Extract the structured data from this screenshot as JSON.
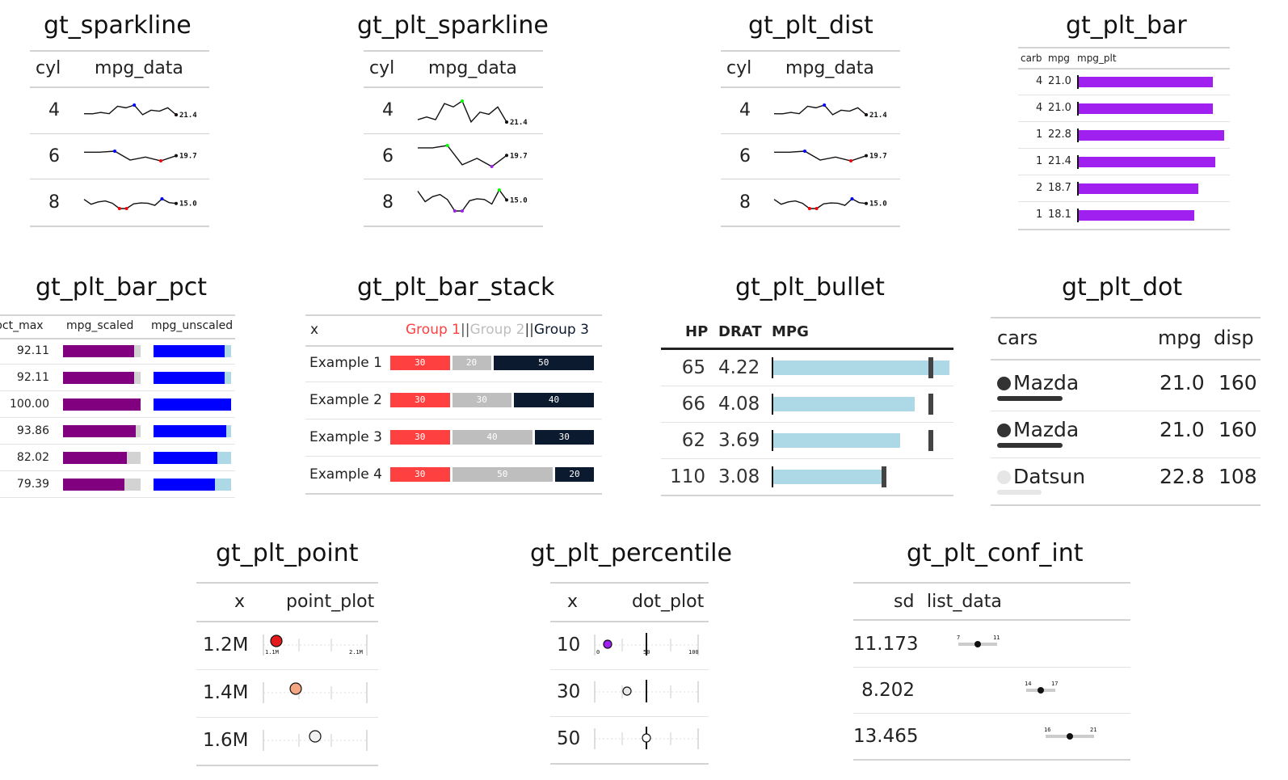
{
  "titles": {
    "sparkline": "gt_sparkline",
    "plt_sparkline": "gt_plt_sparkline",
    "plt_dist": "gt_plt_dist",
    "plt_bar": "gt_plt_bar",
    "bar_pct": "gt_plt_bar_pct",
    "bar_stack": "gt_plt_bar_stack",
    "bullet": "gt_plt_bullet",
    "dot": "gt_plt_dot",
    "point": "gt_plt_point",
    "percentile": "gt_plt_percentile",
    "conf_int": "gt_plt_conf_int"
  },
  "colors": {
    "purple": "#a020f0",
    "dark_purple": "#800080",
    "blue": "#0000ff",
    "light_blue": "#add8e6",
    "red": "#ff4040",
    "gray": "#bebebe",
    "navy": "#0b1a2e",
    "green": "#00ff00"
  },
  "chart_data": [
    {
      "type": "table",
      "id": "sparkline",
      "title": "gt_sparkline",
      "columns": [
        "cyl",
        "mpg_data"
      ],
      "rows": [
        {
          "cyl": "4",
          "label": "21.4",
          "values": [
            22.8,
            22.6,
            24.4,
            22.8,
            32.4,
            30.4,
            33.9,
            21.5,
            27.3,
            26.0,
            30.4,
            21.4
          ]
        },
        {
          "cyl": "6",
          "label": "19.7",
          "values": [
            21.0,
            21.0,
            21.4,
            18.1,
            19.2,
            17.8,
            19.7
          ]
        },
        {
          "cyl": "8",
          "label": "15.0",
          "values": [
            18.7,
            14.3,
            16.4,
            17.3,
            15.2,
            10.4,
            10.4,
            14.7,
            15.5,
            15.2,
            13.3,
            19.2,
            15.8,
            15.0
          ]
        }
      ]
    },
    {
      "type": "table",
      "id": "plt_sparkline",
      "title": "gt_plt_sparkline",
      "columns": [
        "cyl",
        "mpg_data"
      ],
      "rows": [
        {
          "cyl": "4",
          "label": "21.4",
          "values": [
            22.8,
            24.4,
            22.8,
            32.4,
            30.4,
            33.9,
            21.5,
            27.3,
            26.0,
            30.4,
            21.4
          ]
        },
        {
          "cyl": "6",
          "label": "19.7",
          "values": [
            21.0,
            21.0,
            21.4,
            18.1,
            19.2,
            17.8,
            19.7
          ]
        },
        {
          "cyl": "8",
          "label": "15.0",
          "values": [
            18.7,
            14.3,
            16.4,
            17.3,
            15.2,
            10.4,
            10.4,
            14.7,
            15.5,
            15.2,
            13.3,
            19.2,
            15.0
          ]
        }
      ]
    },
    {
      "type": "table",
      "id": "plt_dist",
      "title": "gt_plt_dist",
      "columns": [
        "cyl",
        "mpg_data"
      ],
      "rows": [
        {
          "cyl": "4",
          "label": "21.4",
          "values": [
            22.8,
            22.6,
            24.4,
            22.8,
            32.4,
            30.4,
            33.9,
            21.5,
            27.3,
            26.0,
            30.4,
            21.4
          ]
        },
        {
          "cyl": "6",
          "label": "19.7",
          "values": [
            21.0,
            21.0,
            21.4,
            18.1,
            19.2,
            17.8,
            19.7
          ]
        },
        {
          "cyl": "8",
          "label": "15.0",
          "values": [
            18.7,
            14.3,
            16.4,
            17.3,
            15.2,
            10.4,
            10.4,
            14.7,
            15.5,
            15.2,
            13.3,
            19.2,
            15.8,
            15.0
          ]
        }
      ]
    },
    {
      "type": "bar",
      "id": "plt_bar",
      "title": "gt_plt_bar",
      "columns": [
        "carb",
        "mpg",
        "mpg_plt"
      ],
      "rows": [
        {
          "carb": "4",
          "mpg": "21.0",
          "value": 21.0
        },
        {
          "carb": "4",
          "mpg": "21.0",
          "value": 21.0
        },
        {
          "carb": "1",
          "mpg": "22.8",
          "value": 22.8
        },
        {
          "carb": "1",
          "mpg": "21.4",
          "value": 21.4
        },
        {
          "carb": "2",
          "mpg": "18.7",
          "value": 18.7
        },
        {
          "carb": "1",
          "mpg": "18.1",
          "value": 18.1
        }
      ],
      "xlim": [
        0,
        22.8
      ]
    },
    {
      "type": "bar",
      "id": "bar_pct",
      "title": "gt_plt_bar_pct",
      "columns": [
        "pct_max",
        "mpg_scaled",
        "mpg_unscaled"
      ],
      "rows": [
        {
          "pct_max": "92.11",
          "scaled": 92.11,
          "unscaled": 92.11
        },
        {
          "pct_max": "92.11",
          "scaled": 92.11,
          "unscaled": 92.11
        },
        {
          "pct_max": "100.00",
          "scaled": 100.0,
          "unscaled": 100.0
        },
        {
          "pct_max": "93.86",
          "scaled": 93.86,
          "unscaled": 93.86
        },
        {
          "pct_max": "82.02",
          "scaled": 82.02,
          "unscaled": 82.02
        },
        {
          "pct_max": "79.39",
          "scaled": 79.39,
          "unscaled": 79.39
        }
      ]
    },
    {
      "type": "bar",
      "id": "bar_stack",
      "title": "gt_plt_bar_stack",
      "columns": [
        "x"
      ],
      "legend": [
        "Group 1",
        "||",
        "Group 2",
        "||",
        "Group 3"
      ],
      "rows": [
        {
          "x": "Example 1",
          "values": [
            30,
            20,
            50
          ]
        },
        {
          "x": "Example 2",
          "values": [
            30,
            30,
            40
          ]
        },
        {
          "x": "Example 3",
          "values": [
            30,
            40,
            30
          ]
        },
        {
          "x": "Example 4",
          "values": [
            30,
            50,
            20
          ]
        }
      ]
    },
    {
      "type": "bar",
      "id": "bullet",
      "title": "gt_plt_bullet",
      "columns": [
        "HP",
        "DRAT",
        "MPG"
      ],
      "rows": [
        {
          "hp": "65",
          "drat": "4.22",
          "value": 33.9,
          "target": 30.4
        },
        {
          "hp": "66",
          "drat": "4.08",
          "value": 27.3,
          "target": 30.4
        },
        {
          "hp": "62",
          "drat": "3.69",
          "value": 24.4,
          "target": 30.4
        },
        {
          "hp": "110",
          "drat": "3.08",
          "value": 21.4,
          "target": 21.4
        }
      ],
      "xlim": [
        0,
        35
      ]
    },
    {
      "type": "table",
      "id": "dot",
      "title": "gt_plt_dot",
      "columns": [
        "cars",
        "mpg",
        "disp"
      ],
      "rows": [
        {
          "car": "Mazda",
          "mpg": "21.0",
          "disp": "160",
          "bar": 0.92,
          "color": "#333333"
        },
        {
          "car": "Mazda",
          "mpg": "21.0",
          "disp": "160",
          "bar": 0.92,
          "color": "#333333"
        },
        {
          "car": "Datsun",
          "mpg": "22.8",
          "disp": "108",
          "bar": 0.63,
          "color": "#e6e6e6"
        }
      ]
    },
    {
      "type": "scatter",
      "id": "point",
      "title": "gt_plt_point",
      "columns": [
        "x",
        "point_plot"
      ],
      "axis_labels": [
        "1.1M",
        "2.1M"
      ],
      "xlim": [
        1100000,
        2100000
      ],
      "rows": [
        {
          "x": "1.2M",
          "value": 1200000,
          "color": "#e41a1c"
        },
        {
          "x": "1.4M",
          "value": 1400000,
          "color": "#f4a582"
        },
        {
          "x": "1.6M",
          "value": 1600000,
          "color": "#f0f0f0"
        }
      ]
    },
    {
      "type": "scatter",
      "id": "percentile",
      "title": "gt_plt_percentile",
      "columns": [
        "x",
        "dot_plot"
      ],
      "axis_labels": [
        "0",
        "50",
        "100"
      ],
      "xlim": [
        0,
        100
      ],
      "rows": [
        {
          "x": "10",
          "value": 10,
          "color": "#a020f0"
        },
        {
          "x": "30",
          "value": 30,
          "color": "#e8e8e8"
        },
        {
          "x": "50",
          "value": 50,
          "color": "#ffffff"
        }
      ]
    },
    {
      "type": "scatter",
      "id": "conf_int",
      "title": "gt_plt_conf_int",
      "columns": [
        "sd",
        "list_data"
      ],
      "xlim": [
        4,
        24
      ],
      "rows": [
        {
          "sd": "11.173",
          "mean": 9,
          "low": 7,
          "high": 11,
          "low_label": "7",
          "high_label": "11"
        },
        {
          "sd": "8.202",
          "mean": 15.5,
          "low": 14,
          "high": 17,
          "low_label": "14",
          "high_label": "17"
        },
        {
          "sd": "13.465",
          "mean": 18.5,
          "low": 16,
          "high": 21,
          "low_label": "16",
          "high_label": "21"
        }
      ]
    }
  ]
}
